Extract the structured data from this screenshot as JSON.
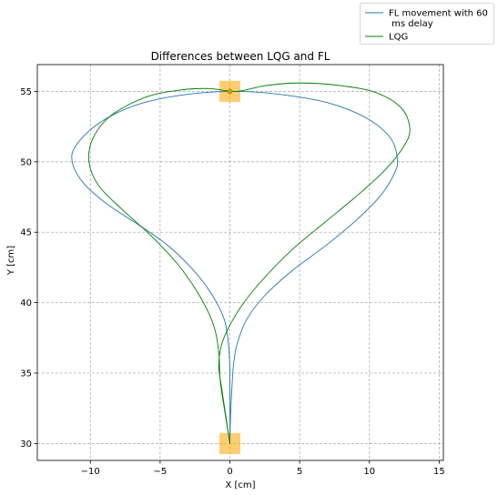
{
  "chart_data": {
    "type": "line",
    "title": "Differences between LQG and FL",
    "xlabel": "X [cm]",
    "ylabel": "Y [cm]",
    "xlim": [
      -13.8,
      15.3
    ],
    "ylim": [
      28.8,
      56.9
    ],
    "xticks": [
      -10,
      -5,
      0,
      5,
      10,
      15
    ],
    "yticks": [
      30,
      35,
      40,
      45,
      50,
      55
    ],
    "grid": true,
    "legend_position": "top-right (outside plot)",
    "targets": [
      {
        "x": 0,
        "y": 55,
        "half_width": 0.75,
        "color": "#FFA500"
      },
      {
        "x": 0,
        "y": 30,
        "half_width": 0.75,
        "color": "#FFA500"
      }
    ],
    "marker": {
      "x": 0,
      "y": 55,
      "color": "#d99a00"
    },
    "series": [
      {
        "name": "FL movement with 60\n ms delay",
        "color": "#1f77b4",
        "points": [
          [
            0,
            30
          ],
          [
            0.05,
            32
          ],
          [
            0.15,
            34
          ],
          [
            0.25,
            35.5
          ],
          [
            0.5,
            37
          ],
          [
            1.2,
            38.8
          ],
          [
            2.5,
            40.5
          ],
          [
            4.5,
            42.3
          ],
          [
            6.8,
            44.0
          ],
          [
            9.0,
            45.8
          ],
          [
            10.8,
            47.6
          ],
          [
            11.8,
            49.2
          ],
          [
            12.0,
            50.2
          ],
          [
            11.5,
            51.7
          ],
          [
            9.8,
            53.1
          ],
          [
            7.0,
            54.2
          ],
          [
            3.5,
            54.8
          ],
          [
            0.5,
            55.0
          ],
          [
            -3.0,
            54.8
          ],
          [
            -6.5,
            54.1
          ],
          [
            -9.3,
            52.8
          ],
          [
            -11.0,
            51.2
          ],
          [
            -11.3,
            50.0
          ],
          [
            -10.5,
            48.5
          ],
          [
            -8.8,
            47.0
          ],
          [
            -6.5,
            45.5
          ],
          [
            -4.5,
            44.1
          ],
          [
            -2.7,
            42.4
          ],
          [
            -1.3,
            40.6
          ],
          [
            -0.4,
            38.8
          ],
          [
            -0.1,
            37.0
          ],
          [
            0,
            35
          ],
          [
            0,
            30
          ]
        ]
      },
      {
        "name": "LQG",
        "color": "#008000",
        "points": [
          [
            0,
            30
          ],
          [
            -0.3,
            32
          ],
          [
            -0.6,
            34
          ],
          [
            -0.8,
            35.5
          ],
          [
            -0.6,
            37
          ],
          [
            0,
            38.4
          ],
          [
            1.0,
            40.0
          ],
          [
            2.5,
            41.8
          ],
          [
            4.5,
            43.8
          ],
          [
            6.8,
            45.7
          ],
          [
            9.0,
            47.5
          ],
          [
            11.0,
            49.3
          ],
          [
            12.4,
            51.0
          ],
          [
            12.9,
            52.3
          ],
          [
            12.3,
            53.8
          ],
          [
            10.5,
            54.9
          ],
          [
            8.0,
            55.4
          ],
          [
            5.0,
            55.6
          ],
          [
            2.5,
            55.4
          ],
          [
            0.5,
            55.0
          ],
          [
            -1.5,
            55.2
          ],
          [
            -3.5,
            55.1
          ],
          [
            -6.0,
            54.6
          ],
          [
            -8.5,
            53.3
          ],
          [
            -9.8,
            51.7
          ],
          [
            -10.1,
            50.0
          ],
          [
            -9.4,
            48.3
          ],
          [
            -7.7,
            46.6
          ],
          [
            -5.7,
            44.8
          ],
          [
            -3.8,
            42.8
          ],
          [
            -2.3,
            40.7
          ],
          [
            -1.2,
            38.5
          ],
          [
            -0.8,
            36.5
          ],
          [
            -0.7,
            34.5
          ],
          [
            -0.4,
            32.5
          ],
          [
            0,
            30
          ]
        ]
      }
    ]
  }
}
